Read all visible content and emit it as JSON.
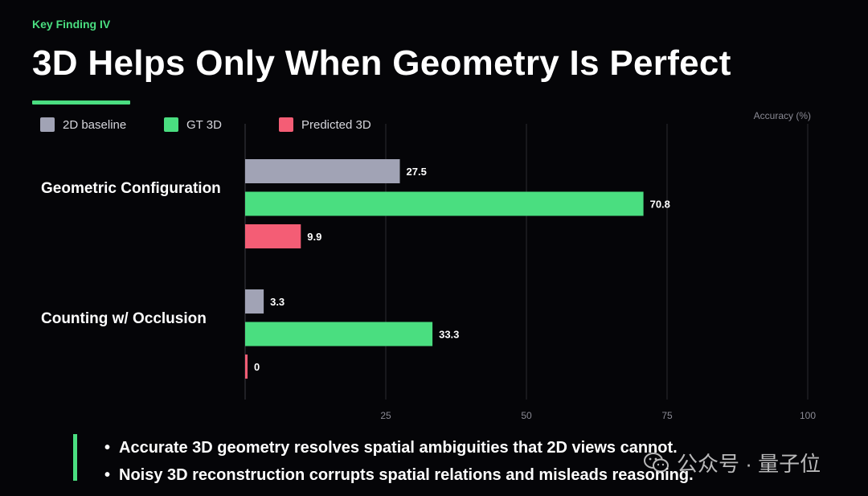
{
  "header": {
    "eyebrow": "Key Finding IV",
    "title": "3D Helps Only When Geometry Is Perfect"
  },
  "colors": {
    "accent": "#4ade80",
    "baseline": "#a1a3b5",
    "gt3d": "#4ade80",
    "predicted3d": "#f45d75"
  },
  "chart_data": {
    "type": "bar",
    "orientation": "horizontal",
    "categories": [
      "Geometric Configuration",
      "Counting w/ Occlusion"
    ],
    "series": [
      {
        "name": "2D baseline",
        "values": [
          27.5,
          3.3
        ]
      },
      {
        "name": "GT 3D",
        "values": [
          70.8,
          33.3
        ]
      },
      {
        "name": "Predicted 3D",
        "values": [
          9.9,
          0
        ]
      }
    ],
    "data_labels": [
      [
        "27.5",
        "3.3"
      ],
      [
        "70.8",
        "33.3"
      ],
      [
        "9.9",
        "0"
      ]
    ],
    "xlabel": "Accuracy (%)",
    "xlim": [
      0,
      100
    ],
    "xticks": [
      25,
      50,
      75,
      100
    ],
    "grid": true,
    "legend": "top-left"
  },
  "bullets": [
    "Accurate 3D geometry resolves spatial ambiguities that 2D views cannot.",
    "Noisy 3D reconstruction corrupts spatial relations and misleads reasoning."
  ],
  "watermark": {
    "text": "公众号 · 量子位",
    "icon": "wechat-icon"
  }
}
